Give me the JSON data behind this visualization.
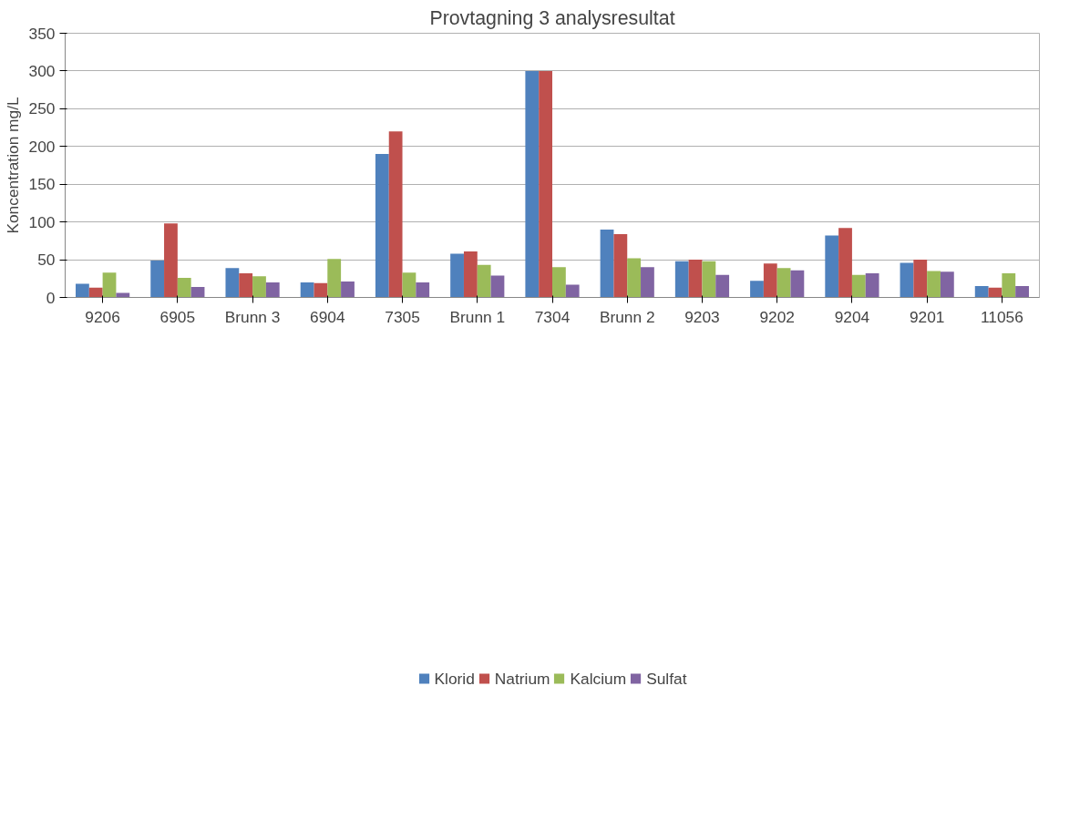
{
  "chart_data": {
    "type": "bar",
    "title": "Provtagning 3 analysresultat",
    "ylabel": "Koncentration mg/L",
    "categories": [
      "9206",
      "6905",
      "Brunn 3",
      "6904",
      "7305",
      "Brunn 1",
      "7304",
      "Brunn 2",
      "9203",
      "9202",
      "9204",
      "9201",
      "11056"
    ],
    "series": [
      {
        "name": "Klorid",
        "color": "#4f81bd",
        "values": [
          18,
          49,
          39,
          20,
          190,
          58,
          300,
          90,
          48,
          22,
          82,
          46,
          15
        ]
      },
      {
        "name": "Natrium",
        "color": "#c0504d",
        "values": [
          13,
          98,
          32,
          19,
          220,
          61,
          300,
          84,
          50,
          45,
          92,
          50,
          13
        ]
      },
      {
        "name": "Kalcium",
        "color": "#9bbb59",
        "values": [
          33,
          26,
          28,
          51,
          33,
          43,
          40,
          52,
          48,
          39,
          30,
          35,
          32
        ]
      },
      {
        "name": "Sulfat",
        "color": "#8064a2",
        "values": [
          6,
          14,
          20,
          21,
          20,
          29,
          17,
          40,
          30,
          36,
          32,
          34,
          15
        ]
      }
    ],
    "ylim": [
      0,
      350
    ],
    "yticks": [
      0,
      50,
      100,
      150,
      200,
      250,
      300,
      350
    ],
    "grid": "y",
    "legend": "bottom"
  }
}
